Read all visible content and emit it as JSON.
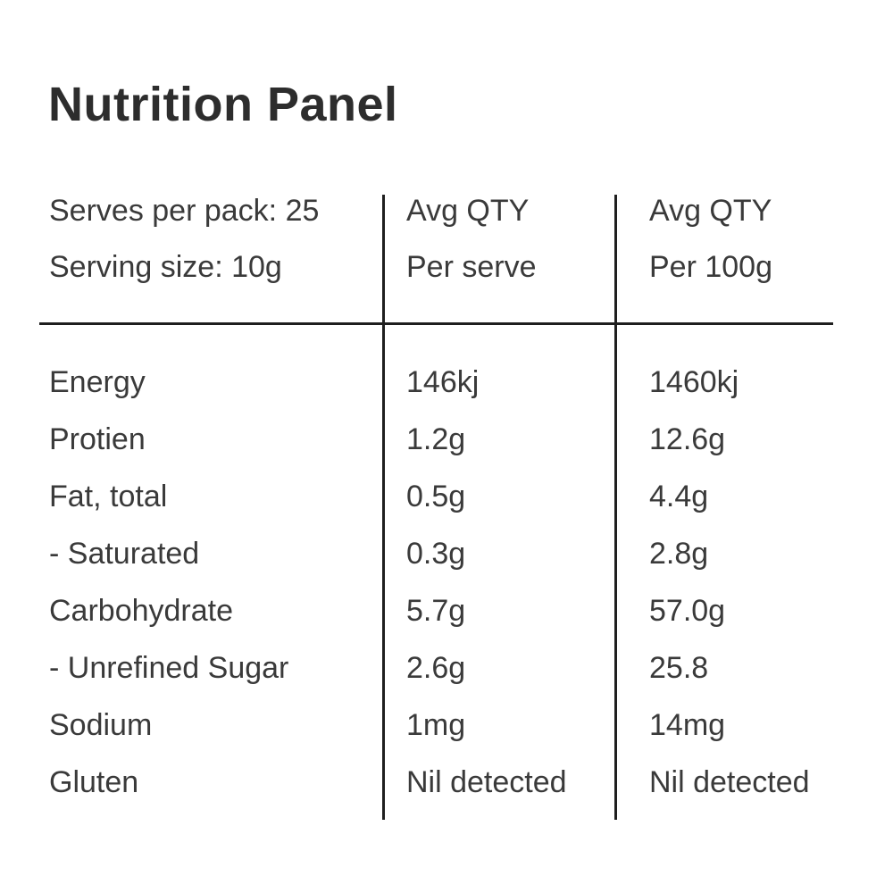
{
  "page": {
    "title": "Nutrition Panel",
    "background_color": "#ffffff",
    "text_color": "#3a3a3a",
    "line_color": "#1f1f1f"
  },
  "table": {
    "header": {
      "serves_per_pack": "Serves per pack: 25",
      "serving_size": "Serving size: 10g",
      "col_serve_line1": "Avg QTY",
      "col_serve_line2": "Per serve",
      "col_100g_line1": "Avg QTY",
      "col_100g_line2": "Per 100g"
    },
    "rows": [
      {
        "label": "Energy",
        "per_serve": "146kj",
        "per_100g": "1460kj"
      },
      {
        "label": "Protien",
        "per_serve": "1.2g",
        "per_100g": "12.6g"
      },
      {
        "label": "Fat, total",
        "per_serve": "0.5g",
        "per_100g": "4.4g"
      },
      {
        "label": "- Saturated",
        "per_serve": "0.3g",
        "per_100g": "2.8g"
      },
      {
        "label": "Carbohydrate",
        "per_serve": "5.7g",
        "per_100g": "57.0g"
      },
      {
        "label": "- Unrefined Sugar",
        "per_serve": "2.6g",
        "per_100g": "25.8"
      },
      {
        "label": "Sodium",
        "per_serve": "1mg",
        "per_100g": "14mg"
      },
      {
        "label": "Gluten",
        "per_serve": "Nil detected",
        "per_100g": "Nil detected"
      }
    ]
  }
}
